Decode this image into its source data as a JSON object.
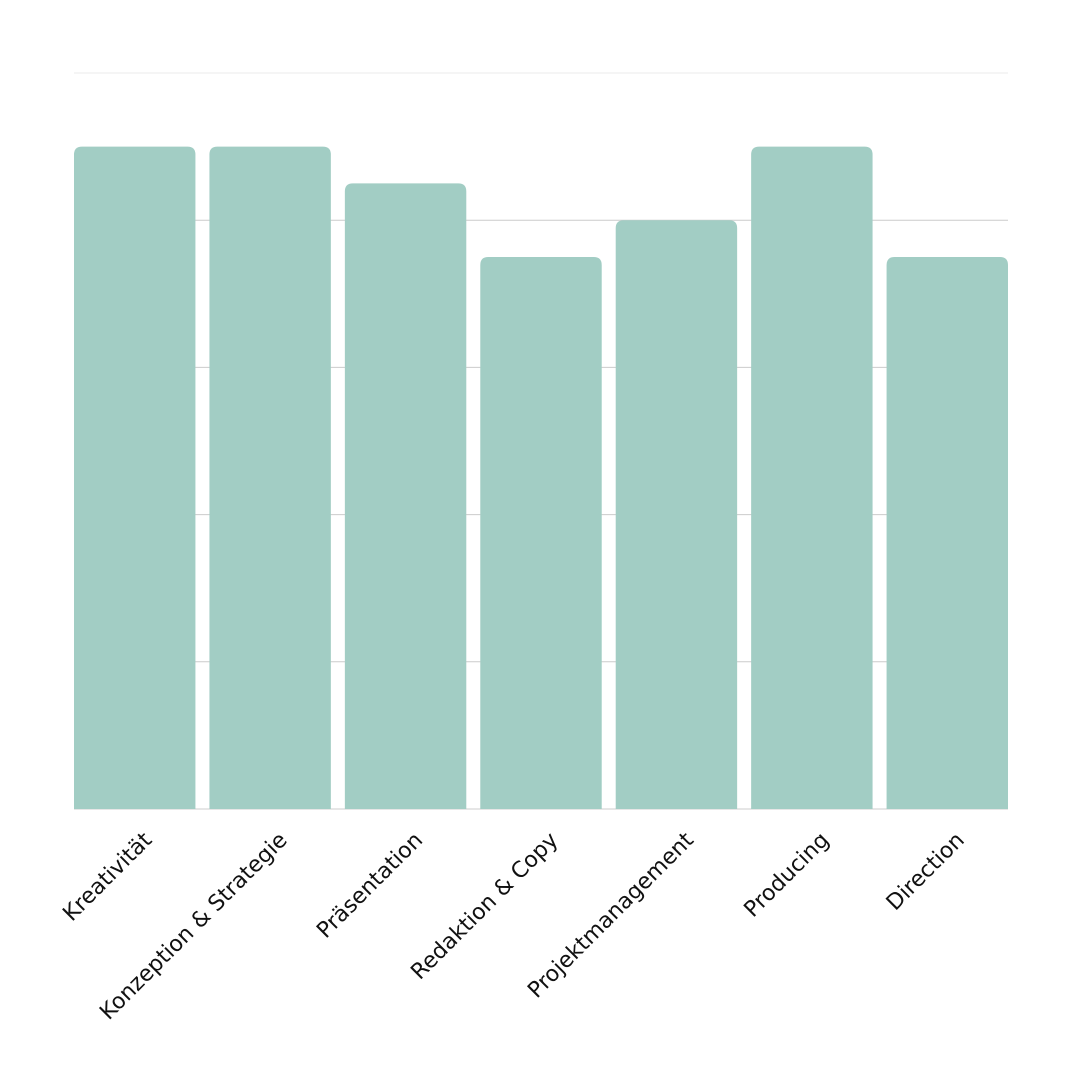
{
  "chart_data": {
    "type": "bar",
    "categories": [
      "Kreativität",
      "Konzeption & Strategie",
      "Präsentation",
      "Redaktion & Copy",
      "Projektmanagement",
      "Producing",
      "Direction"
    ],
    "values": [
      4.5,
      4.5,
      4.25,
      3.75,
      4,
      4.5,
      3.75
    ],
    "color": "#a2cdc4",
    "ylim": [
      0,
      5
    ],
    "yticks": [
      0,
      1,
      2,
      3,
      4,
      5
    ],
    "grid": true
  }
}
